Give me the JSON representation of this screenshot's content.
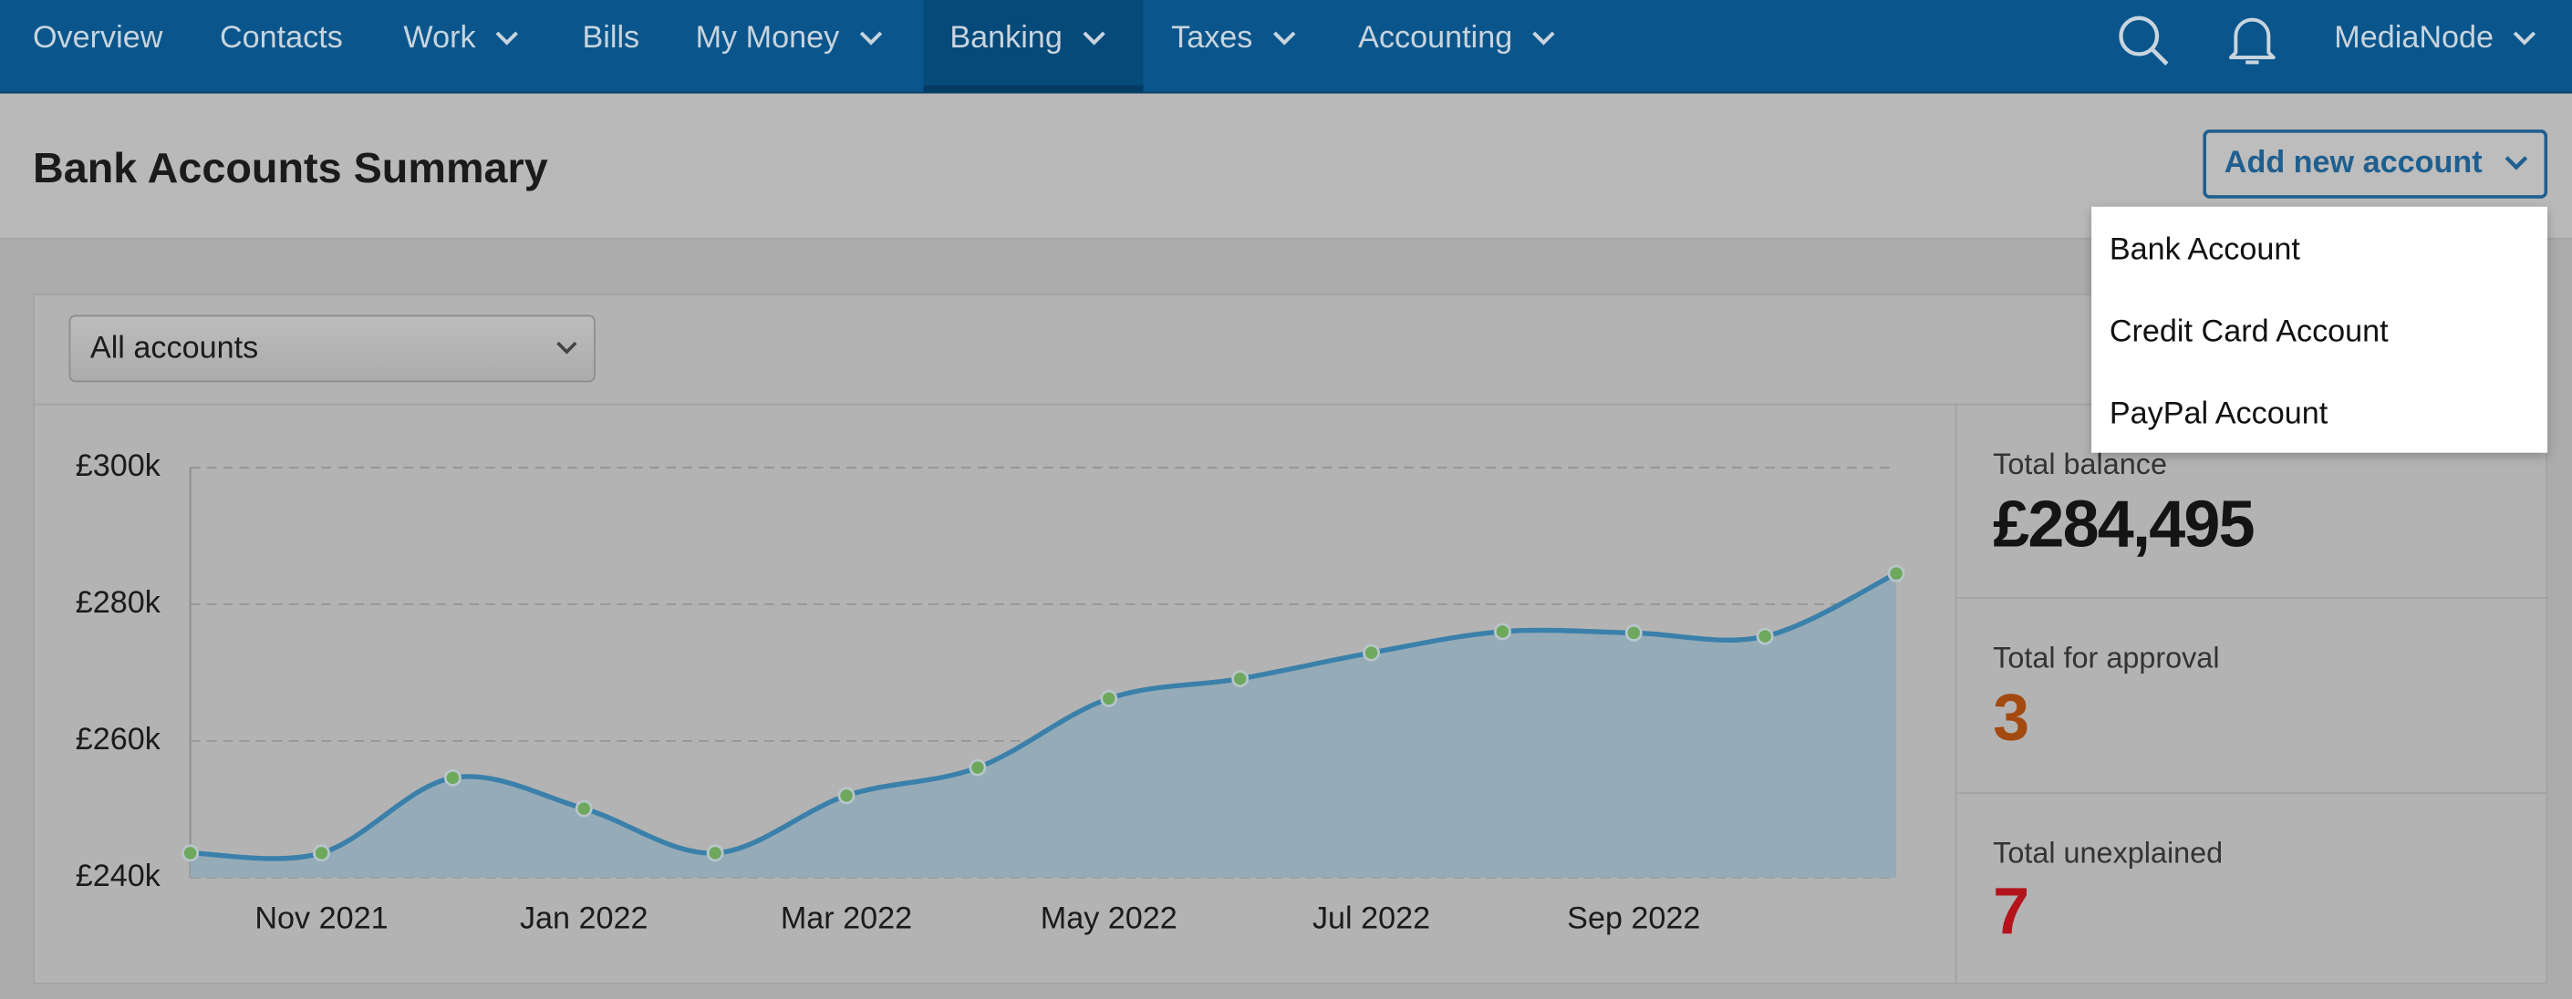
{
  "nav": {
    "items": [
      "Overview",
      "Contacts",
      "Work",
      "Bills",
      "My Money",
      "Banking",
      "Taxes",
      "Accounting"
    ],
    "user": "MediaNode"
  },
  "header": {
    "title": "Bank Accounts Summary",
    "button": "Add new account"
  },
  "dropdown": {
    "items": [
      "Bank Account",
      "Credit Card Account",
      "PayPal Account"
    ]
  },
  "filter": {
    "selected": "All accounts"
  },
  "stats": [
    {
      "label": "Total balance",
      "value": "£284,495"
    },
    {
      "label": "Total for approval",
      "value": "3"
    },
    {
      "label": "Total unexplained",
      "value": "7"
    }
  ],
  "chart_data": {
    "type": "area",
    "categories": [
      null,
      "Nov 2021",
      null,
      "Jan 2022",
      null,
      "Mar 2022",
      null,
      "May 2022",
      null,
      "Jul 2022",
      null,
      "Sep 2022",
      null,
      null
    ],
    "values": [
      243600,
      243600,
      254600,
      250100,
      243600,
      252000,
      256100,
      266200,
      269100,
      272900,
      276000,
      275800,
      275300,
      284495
    ],
    "color": "#3a80aa",
    "fill": "#95abb8",
    "marker_color": "#6ea85c",
    "ylim": [
      240000,
      300000
    ],
    "yticks": [
      {
        "value": 240000,
        "label": "£240k"
      },
      {
        "value": 260000,
        "label": "£260k"
      },
      {
        "value": 280000,
        "label": "£280k"
      },
      {
        "value": 300000,
        "label": "£300k"
      }
    ],
    "grid": true
  }
}
